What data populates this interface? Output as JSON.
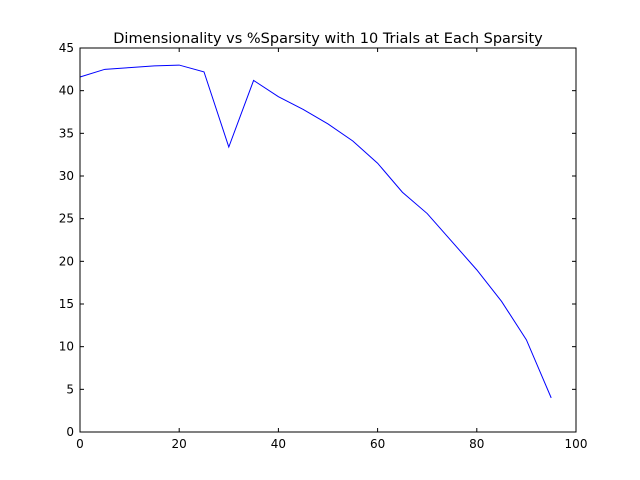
{
  "chart_data": {
    "type": "line",
    "title": "Dimensionality vs %Sparsity with 10 Trials at Each Sparsity",
    "xlabel": "",
    "ylabel": "",
    "xlim": [
      0,
      100
    ],
    "ylim": [
      0,
      45
    ],
    "xticks": [
      0,
      20,
      40,
      60,
      80,
      100
    ],
    "yticks": [
      0,
      5,
      10,
      15,
      20,
      25,
      30,
      35,
      40,
      45
    ],
    "grid": false,
    "series": [
      {
        "color": "#0000ff",
        "x": [
          0,
          5,
          10,
          15,
          20,
          25,
          30,
          35,
          40,
          45,
          50,
          55,
          60,
          65,
          70,
          75,
          80,
          85,
          90,
          95
        ],
        "y": [
          41.6,
          42.5,
          42.7,
          42.9,
          43.0,
          42.2,
          33.4,
          41.2,
          39.3,
          37.8,
          36.1,
          34.1,
          31.5,
          28.1,
          25.6,
          22.3,
          19.0,
          15.3,
          10.8,
          4.0
        ]
      }
    ]
  }
}
